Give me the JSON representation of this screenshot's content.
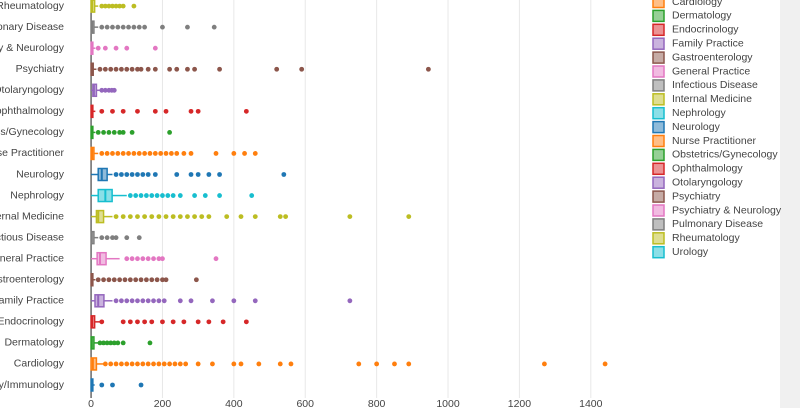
{
  "chart_data": {
    "type": "box",
    "orientation": "horizontal",
    "categories": [
      "y/Immunology",
      "Cardiology",
      "Dermatology",
      "Endocrinology",
      "Family Practice",
      "stroenterology",
      "eneral Practice",
      "ctious Disease",
      "ernal Medicine",
      "Nephrology",
      "Neurology",
      "se Practitioner",
      "cs/Gynecology",
      "ophthalmology",
      "Otolaryngology",
      "Psychiatry",
      "y & Neurology",
      "onary Disease",
      "Rheumatology"
    ],
    "boxes": [
      {
        "color": "#1f77b4",
        "q1": 0,
        "median": 2,
        "q3": 5,
        "lo": 0,
        "hi": 10,
        "outliers": [
          30,
          60,
          140
        ]
      },
      {
        "color": "#ff7f0e",
        "q1": 0,
        "median": 5,
        "q3": 15,
        "lo": 0,
        "hi": 35,
        "outliers": [
          40,
          55,
          70,
          85,
          100,
          115,
          130,
          145,
          160,
          175,
          190,
          205,
          220,
          235,
          250,
          265,
          300,
          340,
          400,
          420,
          470,
          530,
          560,
          750,
          800,
          850,
          890,
          1270,
          1440
        ]
      },
      {
        "color": "#2ca02c",
        "q1": 0,
        "median": 2,
        "q3": 8,
        "lo": 0,
        "hi": 20,
        "outliers": [
          25,
          35,
          45,
          55,
          65,
          75,
          90,
          165
        ]
      },
      {
        "color": "#d62728",
        "q1": 0,
        "median": 3,
        "q3": 10,
        "lo": 0,
        "hi": 25,
        "outliers": [
          30,
          90,
          110,
          130,
          150,
          170,
          200,
          230,
          260,
          300,
          330,
          370,
          435
        ]
      },
      {
        "color": "#9467bd",
        "q1": 11,
        "median": 20,
        "q3": 36,
        "lo": 0,
        "hi": 60,
        "outliers": [
          70,
          85,
          100,
          115,
          130,
          145,
          160,
          175,
          190,
          205,
          250,
          280,
          340,
          400,
          460,
          725
        ]
      },
      {
        "color": "#8c564b",
        "q1": 0,
        "median": 2,
        "q3": 5,
        "lo": 0,
        "hi": 12,
        "outliers": [
          20,
          35,
          50,
          65,
          80,
          95,
          110,
          125,
          140,
          155,
          170,
          185,
          200,
          210,
          295
        ]
      },
      {
        "color": "#e377c2",
        "q1": 17,
        "median": 25,
        "q3": 42,
        "lo": 0,
        "hi": 80,
        "outliers": [
          100,
          115,
          130,
          145,
          160,
          175,
          190,
          200,
          350
        ]
      },
      {
        "color": "#7f7f7f",
        "q1": 0,
        "median": 2,
        "q3": 8,
        "lo": 0,
        "hi": 20,
        "outliers": [
          30,
          45,
          60,
          70,
          100,
          135
        ]
      },
      {
        "color": "#bcbd22",
        "q1": 15,
        "median": 20,
        "q3": 35,
        "lo": 0,
        "hi": 60,
        "outliers": [
          70,
          90,
          110,
          130,
          150,
          170,
          190,
          210,
          230,
          250,
          270,
          290,
          310,
          330,
          380,
          420,
          460,
          530,
          545,
          725,
          890
        ]
      },
      {
        "color": "#17becf",
        "q1": 20,
        "median": 40,
        "q3": 59,
        "lo": 0,
        "hi": 100,
        "outliers": [
          110,
          125,
          140,
          155,
          170,
          185,
          200,
          215,
          230,
          250,
          290,
          320,
          360,
          450
        ]
      },
      {
        "color": "#1f77b4",
        "q1": 20,
        "median": 30,
        "q3": 45,
        "lo": 0,
        "hi": 60,
        "outliers": [
          70,
          85,
          100,
          115,
          130,
          145,
          160,
          180,
          240,
          280,
          300,
          330,
          360,
          540
        ]
      },
      {
        "color": "#ff7f0e",
        "q1": 0,
        "median": 3,
        "q3": 8,
        "lo": 0,
        "hi": 20,
        "outliers": [
          30,
          45,
          60,
          75,
          90,
          105,
          120,
          135,
          150,
          165,
          180,
          195,
          210,
          225,
          240,
          260,
          280,
          350,
          400,
          430,
          460
        ]
      },
      {
        "color": "#2ca02c",
        "q1": 0,
        "median": 2,
        "q3": 5,
        "lo": 0,
        "hi": 12,
        "outliers": [
          20,
          35,
          50,
          65,
          80,
          90,
          115,
          220
        ]
      },
      {
        "color": "#d62728",
        "q1": 0,
        "median": 2,
        "q3": 5,
        "lo": 0,
        "hi": 12,
        "outliers": [
          30,
          60,
          90,
          130,
          180,
          210,
          280,
          300,
          435
        ]
      },
      {
        "color": "#9467bd",
        "q1": 5,
        "median": 8,
        "q3": 15,
        "lo": 0,
        "hi": 25,
        "outliers": [
          30,
          40,
          50,
          58,
          65
        ]
      },
      {
        "color": "#8c564b",
        "q1": 0,
        "median": 2,
        "q3": 6,
        "lo": 0,
        "hi": 15,
        "outliers": [
          25,
          40,
          55,
          70,
          85,
          100,
          115,
          130,
          140,
          160,
          180,
          220,
          240,
          270,
          290,
          360,
          520,
          590,
          945
        ]
      },
      {
        "color": "#e377c2",
        "q1": 0,
        "median": 2,
        "q3": 5,
        "lo": 0,
        "hi": 12,
        "outliers": [
          20,
          40,
          70,
          100,
          180
        ]
      },
      {
        "color": "#7f7f7f",
        "q1": 0,
        "median": 3,
        "q3": 8,
        "lo": 0,
        "hi": 20,
        "outliers": [
          30,
          45,
          60,
          75,
          90,
          105,
          120,
          135,
          150,
          200,
          270,
          345
        ]
      },
      {
        "color": "#bcbd22",
        "q1": 0,
        "median": 3,
        "q3": 10,
        "lo": 0,
        "hi": 20,
        "outliers": [
          30,
          40,
          50,
          60,
          70,
          80,
          90,
          120
        ]
      }
    ],
    "legend": [
      {
        "name": "Cardiology",
        "color": "#ff7f0e"
      },
      {
        "name": "Dermatology",
        "color": "#2ca02c"
      },
      {
        "name": "Endocrinology",
        "color": "#d62728"
      },
      {
        "name": "Family Practice",
        "color": "#9467bd"
      },
      {
        "name": "Gastroenterology",
        "color": "#8c564b"
      },
      {
        "name": "General Practice",
        "color": "#e377c2"
      },
      {
        "name": "Infectious Disease",
        "color": "#7f7f7f"
      },
      {
        "name": "Internal Medicine",
        "color": "#bcbd22"
      },
      {
        "name": "Nephrology",
        "color": "#17becf"
      },
      {
        "name": "Neurology",
        "color": "#1f77b4"
      },
      {
        "name": "Nurse Practitioner",
        "color": "#ff7f0e"
      },
      {
        "name": "Obstetrics/Gynecology",
        "color": "#2ca02c"
      },
      {
        "name": "Ophthalmology",
        "color": "#d62728"
      },
      {
        "name": "Otolaryngology",
        "color": "#9467bd"
      },
      {
        "name": "Psychiatry",
        "color": "#8c564b"
      },
      {
        "name": "Psychiatry & Neurology",
        "color": "#e377c2"
      },
      {
        "name": "Pulmonary Disease",
        "color": "#7f7f7f"
      },
      {
        "name": "Rheumatology",
        "color": "#bcbd22"
      },
      {
        "name": "Urology",
        "color": "#17becf"
      }
    ],
    "xlim": [
      -17,
      1930
    ],
    "xticks": [
      0,
      200,
      400,
      600,
      800,
      1000,
      1200,
      1400
    ],
    "grid": true
  }
}
